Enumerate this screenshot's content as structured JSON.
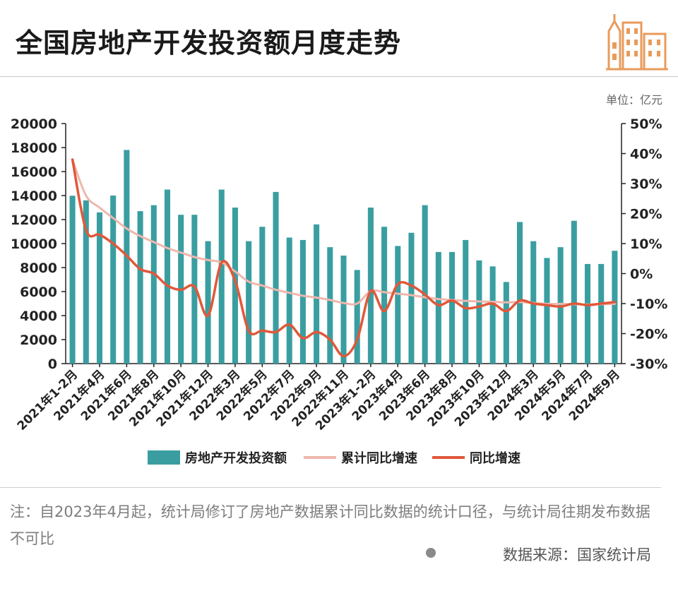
{
  "title": "全国房地产开发投资额月度走势",
  "unit": "单位：亿元",
  "note": "注：自2023年4月起，统计局修订了房地产数据累计同比数据的统计口径，与统计局往期发布数据不可比",
  "source": "数据来源：国家统计局",
  "colors": {
    "bar": "#3a9ea1",
    "cumulative": "#efb7ad",
    "yoy": "#e0583a",
    "logo": "#e89b5b"
  },
  "chart_data": {
    "type": "bar",
    "categories": [
      "2021年1-2月",
      "2021年3月",
      "2021年4月",
      "2021年5月",
      "2021年6月",
      "2021年7月",
      "2021年8月",
      "2021年9月",
      "2021年10月",
      "2021年11月",
      "2021年12月",
      "2022年1-2月",
      "2022年3月",
      "2022年4月",
      "2022年5月",
      "2022年6月",
      "2022年7月",
      "2022年8月",
      "2022年9月",
      "2022年10月",
      "2022年11月",
      "2022年12月",
      "2023年1-2月",
      "2023年3月",
      "2023年4月",
      "2023年5月",
      "2023年6月",
      "2023年7月",
      "2023年8月",
      "2023年9月",
      "2023年10月",
      "2023年11月",
      "2023年12月",
      "2024年1-2月",
      "2024年3月",
      "2024年4月",
      "2024年5月",
      "2024年6月",
      "2024年7月",
      "2024年8月",
      "2024年9月"
    ],
    "x_tick_labels": [
      "2021年1-2月",
      "2021年4月",
      "2021年6月",
      "2021年8月",
      "2021年10月",
      "2021年12月",
      "2022年3月",
      "2022年5月",
      "2022年7月",
      "2022年9月",
      "2022年11月",
      "2023年1-2月",
      "2023年4月",
      "2023年6月",
      "2023年8月",
      "2023年10月",
      "2023年12月",
      "2024年3月",
      "2024年5月",
      "2024年7月",
      "2024年9月"
    ],
    "series": [
      {
        "name": "房地产开发投资额",
        "kind": "bar",
        "axis": "left",
        "values": [
          13986,
          13600,
          12600,
          14000,
          17800,
          12700,
          13200,
          14500,
          12400,
          12400,
          10200,
          14500,
          13000,
          10200,
          11400,
          14300,
          10500,
          10300,
          11600,
          9700,
          9000,
          7800,
          13000,
          11400,
          9800,
          10900,
          13200,
          9300,
          9300,
          10300,
          8600,
          8100,
          6800,
          11800,
          10200,
          8800,
          9700,
          11900,
          8300,
          8300,
          9400
        ]
      },
      {
        "name": "累计同比增速",
        "kind": "line",
        "axis": "right",
        "values": [
          38,
          26,
          22,
          18.5,
          15,
          12.5,
          10.5,
          8.5,
          7,
          5.5,
          4.5,
          3.7,
          0.7,
          -2.7,
          -4.0,
          -5.4,
          -6.4,
          -7.4,
          -8.0,
          -8.8,
          -9.8,
          -10.0,
          -5.8,
          -6.2,
          -6.7,
          -7.2,
          -7.9,
          -8.5,
          -8.8,
          -9.1,
          -9.3,
          -9.4,
          -9.6,
          -9.5,
          -9.8,
          -10.1,
          -10.1,
          -10.2,
          -10.3,
          -10.2,
          -10.1
        ]
      },
      {
        "name": "同比增速",
        "kind": "line",
        "axis": "right",
        "values": [
          38,
          14.5,
          13,
          10,
          6,
          1.5,
          0,
          -4,
          -5.4,
          -4.3,
          -14,
          3.7,
          -2.4,
          -19,
          -19,
          -19.5,
          -17,
          -21.5,
          -19.5,
          -22,
          -27.5,
          -22,
          -5.8,
          -12.5,
          -3.5,
          -4,
          -7,
          -10.5,
          -9,
          -11.5,
          -11,
          -10,
          -12.5,
          -9,
          -10,
          -10.5,
          -11,
          -10,
          -10.5,
          -10,
          -9.5
        ]
      }
    ],
    "y_left": {
      "min": 0,
      "max": 20000,
      "ticks": [
        0,
        2000,
        4000,
        6000,
        8000,
        10000,
        12000,
        14000,
        16000,
        18000,
        20000
      ]
    },
    "y_right": {
      "min": -30,
      "max": 50,
      "ticks": [
        "-30%",
        "-20%",
        "-10%",
        "0%",
        "10%",
        "20%",
        "30%",
        "40%",
        "50%"
      ]
    },
    "legend": "bottom"
  }
}
